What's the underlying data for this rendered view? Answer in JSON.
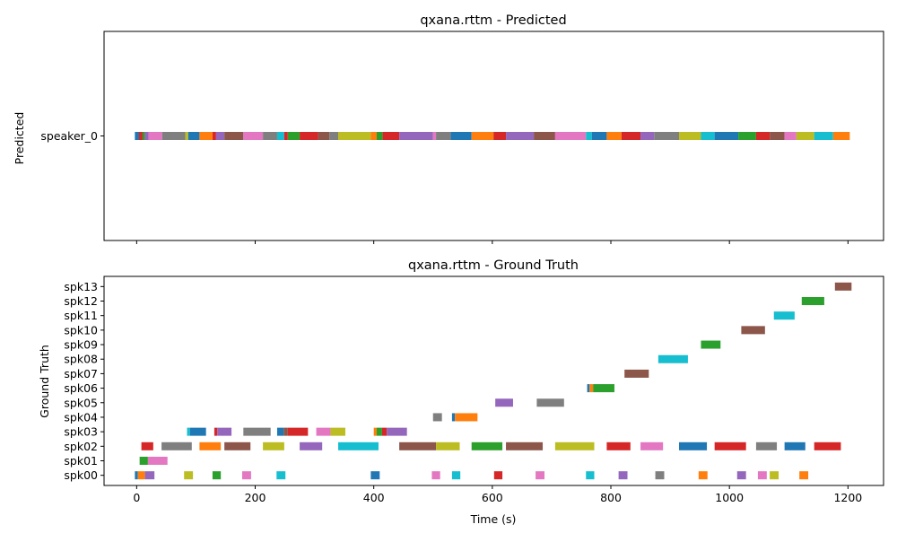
{
  "chart_data": [
    {
      "type": "timeline",
      "title": "qxana.rttm - Predicted",
      "xlabel": "",
      "ylabel": "Predicted",
      "xlim": [
        -55,
        1260
      ],
      "xticks": [
        0,
        200,
        400,
        600,
        800,
        1000,
        1200
      ],
      "show_xtick_labels": false,
      "categories": [
        "speaker_0"
      ],
      "segments": [
        {
          "speaker": "speaker_0",
          "start": -3,
          "end": 4,
          "color": "#1f77b4"
        },
        {
          "speaker": "speaker_0",
          "start": 4,
          "end": 10,
          "color": "#d62728"
        },
        {
          "speaker": "speaker_0",
          "start": 10,
          "end": 14,
          "color": "#2ca02c"
        },
        {
          "speaker": "speaker_0",
          "start": 14,
          "end": 20,
          "color": "#9467bd"
        },
        {
          "speaker": "speaker_0",
          "start": 20,
          "end": 43,
          "color": "#e377c2"
        },
        {
          "speaker": "speaker_0",
          "start": 43,
          "end": 82,
          "color": "#7f7f7f"
        },
        {
          "speaker": "speaker_0",
          "start": 82,
          "end": 87,
          "color": "#bcbd22"
        },
        {
          "speaker": "speaker_0",
          "start": 87,
          "end": 106,
          "color": "#1f77b4"
        },
        {
          "speaker": "speaker_0",
          "start": 106,
          "end": 128,
          "color": "#ff7f0e"
        },
        {
          "speaker": "speaker_0",
          "start": 128,
          "end": 134,
          "color": "#d62728"
        },
        {
          "speaker": "speaker_0",
          "start": 134,
          "end": 148,
          "color": "#9467bd"
        },
        {
          "speaker": "speaker_0",
          "start": 148,
          "end": 180,
          "color": "#8c564b"
        },
        {
          "speaker": "speaker_0",
          "start": 180,
          "end": 213,
          "color": "#e377c2"
        },
        {
          "speaker": "speaker_0",
          "start": 213,
          "end": 237,
          "color": "#7f7f7f"
        },
        {
          "speaker": "speaker_0",
          "start": 237,
          "end": 249,
          "color": "#17becf"
        },
        {
          "speaker": "speaker_0",
          "start": 249,
          "end": 255,
          "color": "#d62728"
        },
        {
          "speaker": "speaker_0",
          "start": 255,
          "end": 275,
          "color": "#2ca02c"
        },
        {
          "speaker": "speaker_0",
          "start": 275,
          "end": 306,
          "color": "#d62728"
        },
        {
          "speaker": "speaker_0",
          "start": 306,
          "end": 325,
          "color": "#8c564b"
        },
        {
          "speaker": "speaker_0",
          "start": 325,
          "end": 340,
          "color": "#7f7f7f"
        },
        {
          "speaker": "speaker_0",
          "start": 340,
          "end": 395,
          "color": "#bcbd22"
        },
        {
          "speaker": "speaker_0",
          "start": 395,
          "end": 405,
          "color": "#ff7f0e"
        },
        {
          "speaker": "speaker_0",
          "start": 405,
          "end": 415,
          "color": "#2ca02c"
        },
        {
          "speaker": "speaker_0",
          "start": 415,
          "end": 443,
          "color": "#d62728"
        },
        {
          "speaker": "speaker_0",
          "start": 443,
          "end": 500,
          "color": "#9467bd"
        },
        {
          "speaker": "speaker_0",
          "start": 500,
          "end": 505,
          "color": "#e377c2"
        },
        {
          "speaker": "speaker_0",
          "start": 505,
          "end": 530,
          "color": "#7f7f7f"
        },
        {
          "speaker": "speaker_0",
          "start": 530,
          "end": 565,
          "color": "#1f77b4"
        },
        {
          "speaker": "speaker_0",
          "start": 565,
          "end": 602,
          "color": "#ff7f0e"
        },
        {
          "speaker": "speaker_0",
          "start": 602,
          "end": 623,
          "color": "#d62728"
        },
        {
          "speaker": "speaker_0",
          "start": 623,
          "end": 670,
          "color": "#9467bd"
        },
        {
          "speaker": "speaker_0",
          "start": 670,
          "end": 706,
          "color": "#8c564b"
        },
        {
          "speaker": "speaker_0",
          "start": 706,
          "end": 758,
          "color": "#e377c2"
        },
        {
          "speaker": "speaker_0",
          "start": 758,
          "end": 768,
          "color": "#17becf"
        },
        {
          "speaker": "speaker_0",
          "start": 768,
          "end": 793,
          "color": "#1f77b4"
        },
        {
          "speaker": "speaker_0",
          "start": 793,
          "end": 818,
          "color": "#ff7f0e"
        },
        {
          "speaker": "speaker_0",
          "start": 818,
          "end": 850,
          "color": "#d62728"
        },
        {
          "speaker": "speaker_0",
          "start": 850,
          "end": 873,
          "color": "#9467bd"
        },
        {
          "speaker": "speaker_0",
          "start": 873,
          "end": 915,
          "color": "#7f7f7f"
        },
        {
          "speaker": "speaker_0",
          "start": 915,
          "end": 952,
          "color": "#bcbd22"
        },
        {
          "speaker": "speaker_0",
          "start": 952,
          "end": 975,
          "color": "#17becf"
        },
        {
          "speaker": "speaker_0",
          "start": 975,
          "end": 1015,
          "color": "#1f77b4"
        },
        {
          "speaker": "speaker_0",
          "start": 1015,
          "end": 1045,
          "color": "#2ca02c"
        },
        {
          "speaker": "speaker_0",
          "start": 1045,
          "end": 1068,
          "color": "#d62728"
        },
        {
          "speaker": "speaker_0",
          "start": 1068,
          "end": 1093,
          "color": "#8c564b"
        },
        {
          "speaker": "speaker_0",
          "start": 1093,
          "end": 1113,
          "color": "#e377c2"
        },
        {
          "speaker": "speaker_0",
          "start": 1113,
          "end": 1143,
          "color": "#bcbd22"
        },
        {
          "speaker": "speaker_0",
          "start": 1143,
          "end": 1175,
          "color": "#17becf"
        },
        {
          "speaker": "speaker_0",
          "start": 1175,
          "end": 1203,
          "color": "#ff7f0e"
        }
      ]
    },
    {
      "type": "timeline",
      "title": "qxana.rttm - Ground Truth",
      "xlabel": "Time (s)",
      "ylabel": "Ground Truth",
      "xlim": [
        -55,
        1260
      ],
      "xticks": [
        0,
        200,
        400,
        600,
        800,
        1000,
        1200
      ],
      "show_xtick_labels": true,
      "categories": [
        "spk00",
        "spk01",
        "spk02",
        "spk03",
        "spk04",
        "spk05",
        "spk06",
        "spk07",
        "spk08",
        "spk09",
        "spk10",
        "spk11",
        "spk12",
        "spk13"
      ],
      "segments": [
        {
          "speaker": "spk00",
          "start": -3,
          "end": 2,
          "color": "#1f77b4"
        },
        {
          "speaker": "spk00",
          "start": 2,
          "end": 14,
          "color": "#ff7f0e"
        },
        {
          "speaker": "spk00",
          "start": 14,
          "end": 30,
          "color": "#9467bd"
        },
        {
          "speaker": "spk00",
          "start": 80,
          "end": 95,
          "color": "#bcbd22"
        },
        {
          "speaker": "spk00",
          "start": 128,
          "end": 142,
          "color": "#2ca02c"
        },
        {
          "speaker": "spk00",
          "start": 178,
          "end": 193,
          "color": "#e377c2"
        },
        {
          "speaker": "spk00",
          "start": 236,
          "end": 251,
          "color": "#17becf"
        },
        {
          "speaker": "spk00",
          "start": 395,
          "end": 410,
          "color": "#1f77b4"
        },
        {
          "speaker": "spk00",
          "start": 498,
          "end": 512,
          "color": "#e377c2"
        },
        {
          "speaker": "spk00",
          "start": 532,
          "end": 546,
          "color": "#17becf"
        },
        {
          "speaker": "spk00",
          "start": 603,
          "end": 617,
          "color": "#d62728"
        },
        {
          "speaker": "spk00",
          "start": 673,
          "end": 688,
          "color": "#e377c2"
        },
        {
          "speaker": "spk00",
          "start": 758,
          "end": 772,
          "color": "#17becf"
        },
        {
          "speaker": "spk00",
          "start": 813,
          "end": 828,
          "color": "#9467bd"
        },
        {
          "speaker": "spk00",
          "start": 875,
          "end": 890,
          "color": "#7f7f7f"
        },
        {
          "speaker": "spk00",
          "start": 948,
          "end": 963,
          "color": "#ff7f0e"
        },
        {
          "speaker": "spk00",
          "start": 1013,
          "end": 1028,
          "color": "#9467bd"
        },
        {
          "speaker": "spk00",
          "start": 1048,
          "end": 1063,
          "color": "#e377c2"
        },
        {
          "speaker": "spk00",
          "start": 1068,
          "end": 1083,
          "color": "#bcbd22"
        },
        {
          "speaker": "spk00",
          "start": 1118,
          "end": 1133,
          "color": "#ff7f0e"
        },
        {
          "speaker": "spk01",
          "start": 5,
          "end": 19,
          "color": "#2ca02c"
        },
        {
          "speaker": "spk01",
          "start": 19,
          "end": 52,
          "color": "#e377c2"
        },
        {
          "speaker": "spk02",
          "start": 8,
          "end": 28,
          "color": "#d62728"
        },
        {
          "speaker": "spk02",
          "start": 42,
          "end": 93,
          "color": "#7f7f7f"
        },
        {
          "speaker": "spk02",
          "start": 106,
          "end": 142,
          "color": "#ff7f0e"
        },
        {
          "speaker": "spk02",
          "start": 148,
          "end": 192,
          "color": "#8c564b"
        },
        {
          "speaker": "spk02",
          "start": 213,
          "end": 249,
          "color": "#bcbd22"
        },
        {
          "speaker": "spk02",
          "start": 275,
          "end": 313,
          "color": "#9467bd"
        },
        {
          "speaker": "spk02",
          "start": 340,
          "end": 408,
          "color": "#17becf"
        },
        {
          "speaker": "spk02",
          "start": 443,
          "end": 505,
          "color": "#8c564b"
        },
        {
          "speaker": "spk02",
          "start": 505,
          "end": 545,
          "color": "#bcbd22"
        },
        {
          "speaker": "spk02",
          "start": 565,
          "end": 617,
          "color": "#2ca02c"
        },
        {
          "speaker": "spk02",
          "start": 623,
          "end": 685,
          "color": "#8c564b"
        },
        {
          "speaker": "spk02",
          "start": 706,
          "end": 772,
          "color": "#bcbd22"
        },
        {
          "speaker": "spk02",
          "start": 793,
          "end": 833,
          "color": "#d62728"
        },
        {
          "speaker": "spk02",
          "start": 850,
          "end": 888,
          "color": "#e377c2"
        },
        {
          "speaker": "spk02",
          "start": 915,
          "end": 962,
          "color": "#1f77b4"
        },
        {
          "speaker": "spk02",
          "start": 975,
          "end": 1028,
          "color": "#d62728"
        },
        {
          "speaker": "spk02",
          "start": 1045,
          "end": 1080,
          "color": "#7f7f7f"
        },
        {
          "speaker": "spk02",
          "start": 1093,
          "end": 1128,
          "color": "#1f77b4"
        },
        {
          "speaker": "spk02",
          "start": 1143,
          "end": 1188,
          "color": "#d62728"
        },
        {
          "speaker": "spk03",
          "start": 85,
          "end": 90,
          "color": "#17becf"
        },
        {
          "speaker": "spk03",
          "start": 90,
          "end": 117,
          "color": "#1f77b4"
        },
        {
          "speaker": "spk03",
          "start": 131,
          "end": 136,
          "color": "#d62728"
        },
        {
          "speaker": "spk03",
          "start": 136,
          "end": 160,
          "color": "#9467bd"
        },
        {
          "speaker": "spk03",
          "start": 180,
          "end": 226,
          "color": "#7f7f7f"
        },
        {
          "speaker": "spk03",
          "start": 237,
          "end": 248,
          "color": "#1f77b4"
        },
        {
          "speaker": "spk03",
          "start": 248,
          "end": 255,
          "color": "#8c564b"
        },
        {
          "speaker": "spk03",
          "start": 255,
          "end": 289,
          "color": "#d62728"
        },
        {
          "speaker": "spk03",
          "start": 303,
          "end": 327,
          "color": "#e377c2"
        },
        {
          "speaker": "spk03",
          "start": 327,
          "end": 352,
          "color": "#bcbd22"
        },
        {
          "speaker": "spk03",
          "start": 400,
          "end": 405,
          "color": "#ff7f0e"
        },
        {
          "speaker": "spk03",
          "start": 405,
          "end": 414,
          "color": "#2ca02c"
        },
        {
          "speaker": "spk03",
          "start": 414,
          "end": 422,
          "color": "#d62728"
        },
        {
          "speaker": "spk03",
          "start": 422,
          "end": 456,
          "color": "#9467bd"
        },
        {
          "speaker": "spk04",
          "start": 500,
          "end": 515,
          "color": "#7f7f7f"
        },
        {
          "speaker": "spk04",
          "start": 532,
          "end": 537,
          "color": "#1f77b4"
        },
        {
          "speaker": "spk04",
          "start": 537,
          "end": 575,
          "color": "#ff7f0e"
        },
        {
          "speaker": "spk05",
          "start": 605,
          "end": 635,
          "color": "#9467bd"
        },
        {
          "speaker": "spk05",
          "start": 675,
          "end": 721,
          "color": "#7f7f7f"
        },
        {
          "speaker": "spk06",
          "start": 760,
          "end": 764,
          "color": "#1f77b4"
        },
        {
          "speaker": "spk06",
          "start": 764,
          "end": 770,
          "color": "#ff7f0e"
        },
        {
          "speaker": "spk06",
          "start": 770,
          "end": 806,
          "color": "#2ca02c"
        },
        {
          "speaker": "spk07",
          "start": 823,
          "end": 864,
          "color": "#8c564b"
        },
        {
          "speaker": "spk08",
          "start": 880,
          "end": 930,
          "color": "#17becf"
        },
        {
          "speaker": "spk09",
          "start": 952,
          "end": 985,
          "color": "#2ca02c"
        },
        {
          "speaker": "spk10",
          "start": 1020,
          "end": 1060,
          "color": "#8c564b"
        },
        {
          "speaker": "spk11",
          "start": 1075,
          "end": 1110,
          "color": "#17becf"
        },
        {
          "speaker": "spk12",
          "start": 1122,
          "end": 1160,
          "color": "#2ca02c"
        },
        {
          "speaker": "spk13",
          "start": 1178,
          "end": 1206,
          "color": "#8c564b"
        }
      ]
    }
  ]
}
